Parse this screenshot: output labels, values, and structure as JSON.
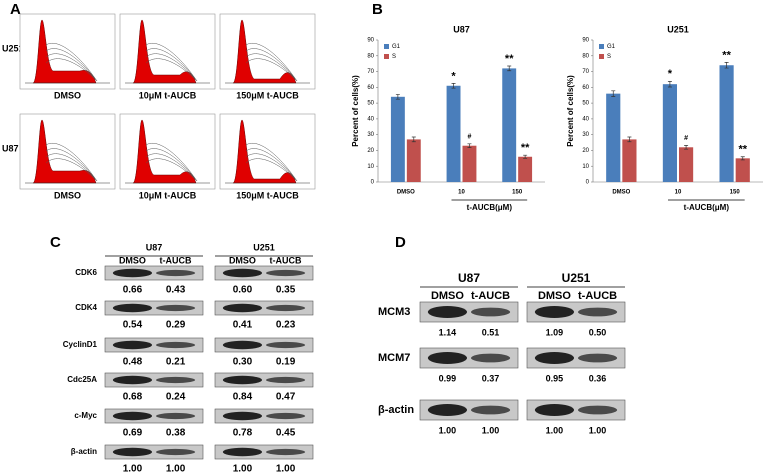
{
  "panel_labels": [
    "A",
    "B",
    "C",
    "D"
  ],
  "flow": {
    "rows": [
      "U251",
      "U87"
    ],
    "columns": [
      "DMSO",
      "10μM t-AUCB",
      "150μM t-AUCB"
    ]
  },
  "chart_data": [
    {
      "type": "bar",
      "title": "U87",
      "ylabel": "Percent of cells(%)",
      "xlabel": "t-AUCB(μM)",
      "categories": [
        "DMSO",
        "10",
        "150"
      ],
      "series": [
        {
          "name": "G1",
          "color": "#4a7ebb",
          "values": [
            54,
            61,
            72
          ],
          "errors": [
            1.5,
            1.5,
            1.5
          ],
          "markers": [
            null,
            "*",
            "**"
          ]
        },
        {
          "name": "S",
          "color": "#c0504d",
          "values": [
            27,
            23,
            16
          ],
          "errors": [
            1.5,
            1.2,
            1
          ],
          "markers": [
            null,
            "#",
            "**"
          ]
        }
      ],
      "ylim": [
        0,
        90
      ],
      "yticks": [
        0,
        10,
        20,
        30,
        40,
        50,
        60,
        70,
        80,
        90
      ],
      "legend": "top-left"
    },
    {
      "type": "bar",
      "title": "U251",
      "ylabel": "Percent of cells(%)",
      "xlabel": "t-AUCB(μM)",
      "categories": [
        "DMSO",
        "10",
        "150"
      ],
      "series": [
        {
          "name": "G1",
          "color": "#4a7ebb",
          "values": [
            56,
            62,
            74
          ],
          "errors": [
            1.8,
            1.8,
            1.8
          ],
          "markers": [
            null,
            "*",
            "**"
          ]
        },
        {
          "name": "S",
          "color": "#c0504d",
          "values": [
            27,
            22,
            15
          ],
          "errors": [
            1.5,
            1.2,
            1
          ],
          "markers": [
            null,
            "#",
            "**"
          ]
        }
      ],
      "ylim": [
        0,
        90
      ],
      "yticks": [
        0,
        10,
        20,
        30,
        40,
        50,
        60,
        70,
        80,
        90
      ],
      "legend": "top-left"
    }
  ],
  "panel_c": {
    "groups": [
      "U87",
      "U251"
    ],
    "columns": [
      "DMSO",
      "t-AUCB",
      "DMSO",
      "t-AUCB"
    ],
    "rows": [
      {
        "label": "CDK6",
        "values": [
          "0.66",
          "0.43",
          "0.60",
          "0.35"
        ]
      },
      {
        "label": "CDK4",
        "values": [
          "0.54",
          "0.29",
          "0.41",
          "0.23"
        ]
      },
      {
        "label": "CyclinD1",
        "values": [
          "0.48",
          "0.21",
          "0.30",
          "0.19"
        ]
      },
      {
        "label": "Cdc25A",
        "values": [
          "0.68",
          "0.24",
          "0.84",
          "0.47"
        ]
      },
      {
        "label": "c-Myc",
        "values": [
          "0.69",
          "0.38",
          "0.78",
          "0.45"
        ]
      },
      {
        "label": "β-actin",
        "values": [
          "1.00",
          "1.00",
          "1.00",
          "1.00"
        ]
      }
    ]
  },
  "panel_d": {
    "groups": [
      "U87",
      "U251"
    ],
    "columns": [
      "DMSO",
      "t-AUCB",
      "DMSO",
      "t-AUCB"
    ],
    "rows": [
      {
        "label": "MCM3",
        "values": [
          "1.14",
          "0.51",
          "1.09",
          "0.50"
        ]
      },
      {
        "label": "MCM7",
        "values": [
          "0.99",
          "0.37",
          "0.95",
          "0.36"
        ]
      },
      {
        "label": "β-actin",
        "values": [
          "1.00",
          "1.00",
          "1.00",
          "1.00"
        ]
      }
    ]
  }
}
